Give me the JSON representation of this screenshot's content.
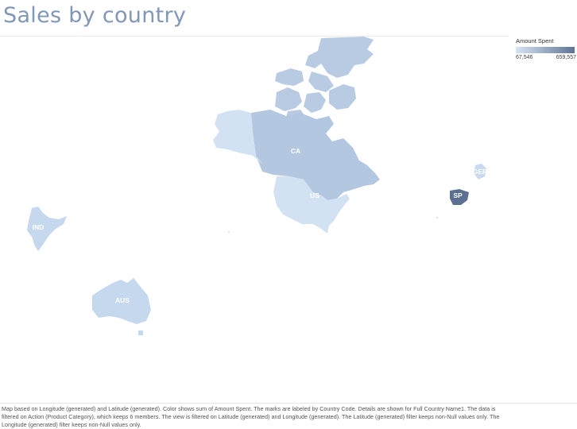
{
  "title": "Sales by country",
  "legend": {
    "title": "Amount Spent",
    "min_label": "67,546",
    "max_label": "659,557",
    "color_low": "#d7e4f3",
    "color_high": "#5e7496"
  },
  "countries": [
    {
      "code": "CA",
      "fill": "#b4c7e0"
    },
    {
      "code": "US",
      "fill": "#d3e2f3"
    },
    {
      "code": "SP",
      "fill": "#5b6f91"
    },
    {
      "code": "GER",
      "fill": "#c9daef"
    },
    {
      "code": "IND",
      "fill": "#c6d8ee"
    },
    {
      "code": "AUS",
      "fill": "#c6d8ee"
    }
  ],
  "caption": "Map based on Longitude (generated) and Latitude (generated).  Color shows sum of Amount Spent.  The marks are labeled by Country Code.  Details are shown for Full Country Name1.  The data is filtered on Action (Product Category), which keeps 6 members. The view is filtered on Latitude (generated) and Longitude (generated). The Latitude (generated) filter keeps non-Null values only. The Longitude (generated) filter keeps non-Null values only."
}
